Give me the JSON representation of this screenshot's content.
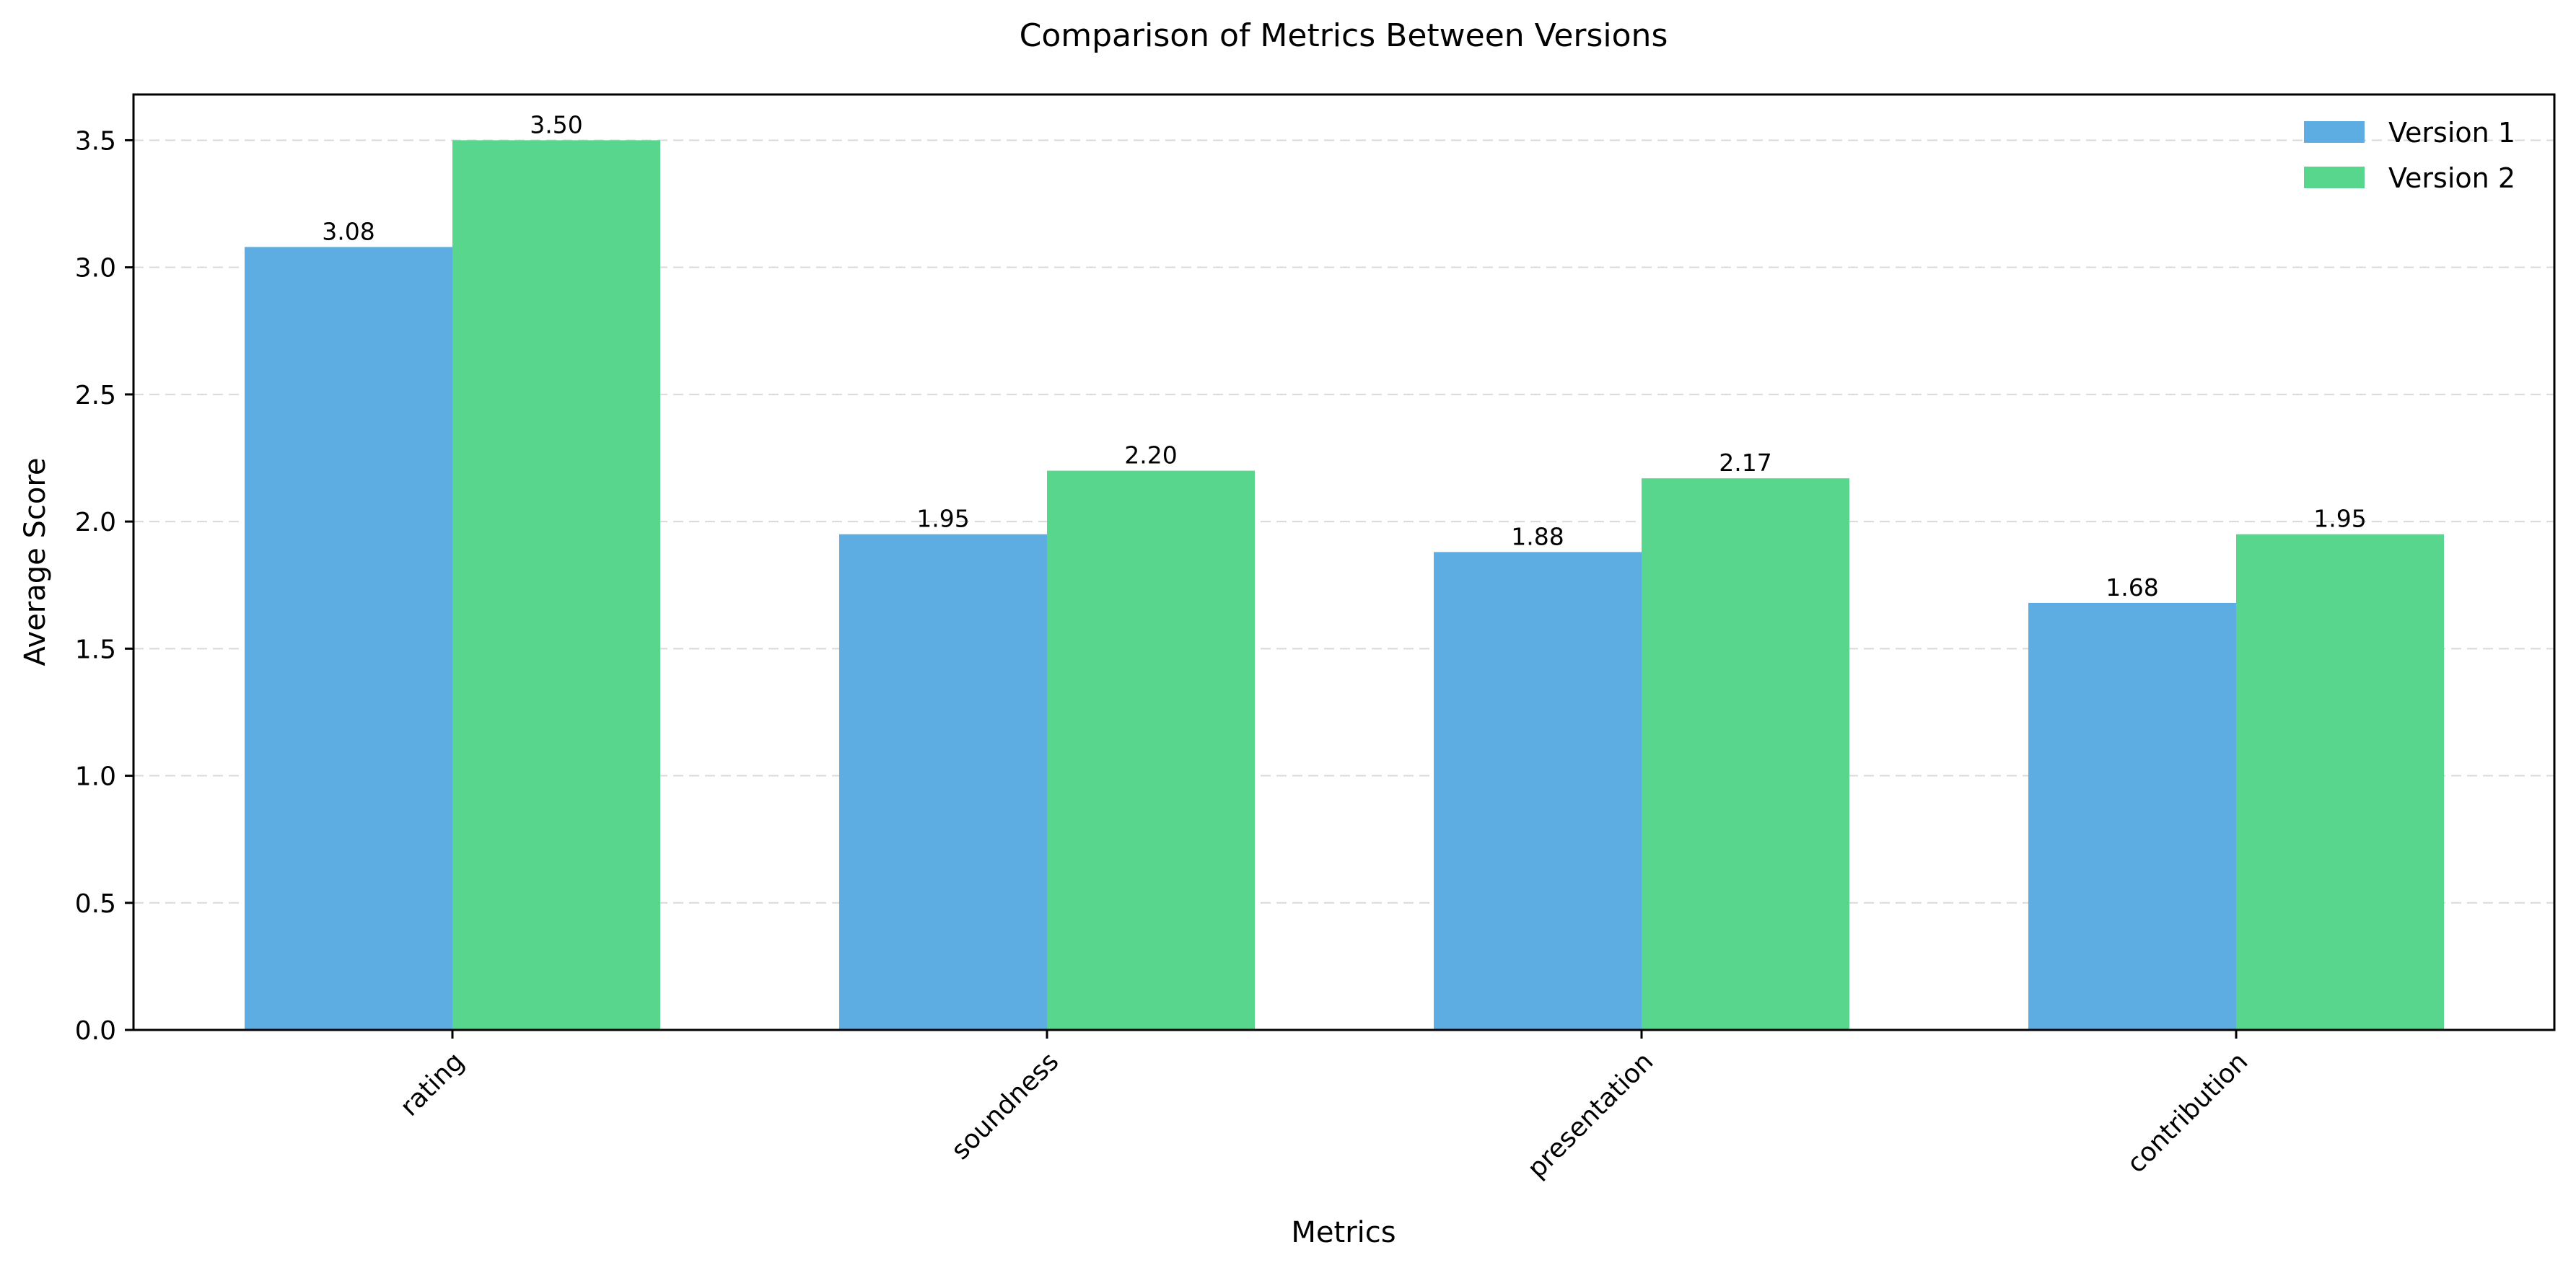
{
  "chart_data": {
    "type": "bar",
    "title": "Comparison of Metrics Between Versions",
    "xlabel": "Metrics",
    "ylabel": "Average Score",
    "categories": [
      "rating",
      "soundness",
      "presentation",
      "contribution"
    ],
    "series": [
      {
        "name": "Version 1",
        "values": [
          3.08,
          1.95,
          1.88,
          1.68
        ],
        "labels": [
          "3.08",
          "1.95",
          "1.88",
          "1.68"
        ],
        "color": "#5dade2"
      },
      {
        "name": "Version 2",
        "values": [
          3.5,
          2.2,
          2.17,
          1.95
        ],
        "labels": [
          "3.50",
          "2.20",
          "2.17",
          "1.95"
        ],
        "color": "#58d68d"
      }
    ],
    "ylim": [
      0,
      3.68
    ],
    "yticks": [
      "0.0",
      "0.5",
      "1.0",
      "1.5",
      "2.0",
      "2.5",
      "3.0",
      "3.5"
    ],
    "grid": "y-dashed",
    "legend_position": "top-right",
    "xtick_rotation": -45
  }
}
